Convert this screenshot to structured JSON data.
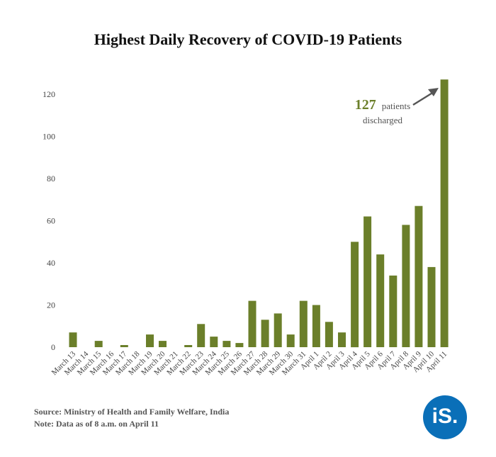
{
  "title": "Highest Daily Recovery of COVID-19 Patients",
  "annotation": {
    "value": "127",
    "text1": "patients",
    "text2": "discharged"
  },
  "source": "Source: Ministry of Health and Family Welfare, India",
  "note": "Note: Data as of 8 a.m. on April 11",
  "logo_text": "iS.",
  "colors": {
    "bar": "#6b7f2a",
    "accent_text": "#6b7f2a",
    "arrow": "#555555",
    "logo": "#0a6fb8"
  },
  "chart_data": {
    "type": "bar",
    "title": "Highest Daily Recovery of COVID-19 Patients",
    "xlabel": "",
    "ylabel": "",
    "ylim": [
      0,
      125
    ],
    "yticks": [
      0,
      20,
      40,
      60,
      80,
      100,
      120
    ],
    "grid": false,
    "categories": [
      "March 13",
      "March 14",
      "March 15",
      "March 16",
      "March 17",
      "March 18",
      "March 19",
      "March 20",
      "March 21",
      "March 22",
      "March 23",
      "March 24",
      "March 25",
      "March 26",
      "March 27",
      "March 28",
      "March 29",
      "March 30",
      "March 31",
      "April 1",
      "April 2",
      "April 3",
      "April 4",
      "April 5",
      "April 6",
      "April 7",
      "April 8",
      "April 9",
      "April 10",
      "April 11"
    ],
    "values": [
      7,
      0,
      3,
      0,
      1,
      0,
      6,
      3,
      0,
      1,
      11,
      5,
      3,
      2,
      22,
      13,
      16,
      6,
      22,
      20,
      12,
      7,
      50,
      62,
      44,
      34,
      58,
      67,
      38,
      127
    ]
  }
}
